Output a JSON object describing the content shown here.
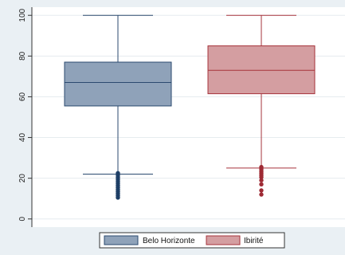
{
  "chart_data": {
    "type": "box",
    "title": "",
    "xlabel": "",
    "ylabel": "",
    "ylim": [
      -4,
      104
    ],
    "yticks": [
      0,
      20,
      40,
      60,
      80,
      100
    ],
    "grid": "horizontal",
    "legend_position": "bottom",
    "series": [
      {
        "name": "Belo Horizonte",
        "color": "#8fa2b9",
        "edge_color": "#2b4a6f",
        "outlier_color": "#1e3f66",
        "min": 22,
        "q1": 55.5,
        "median": 67,
        "q3": 77,
        "max": 100,
        "outliers": [
          22.5,
          21.5,
          20.5,
          19.5,
          18.5,
          17.5,
          16.5,
          15.5,
          14.5,
          13.5,
          12.5,
          11.5,
          10.5
        ]
      },
      {
        "name": "Ibirité",
        "color": "#d49ea1",
        "edge_color": "#a6333b",
        "outlier_color": "#9e2a34",
        "min": 25,
        "q1": 61.5,
        "median": 73,
        "q3": 85,
        "max": 100,
        "outliers": [
          25.5,
          24.5,
          23.5,
          22.5,
          21.5,
          20.5,
          19,
          17,
          14,
          12
        ]
      }
    ]
  }
}
